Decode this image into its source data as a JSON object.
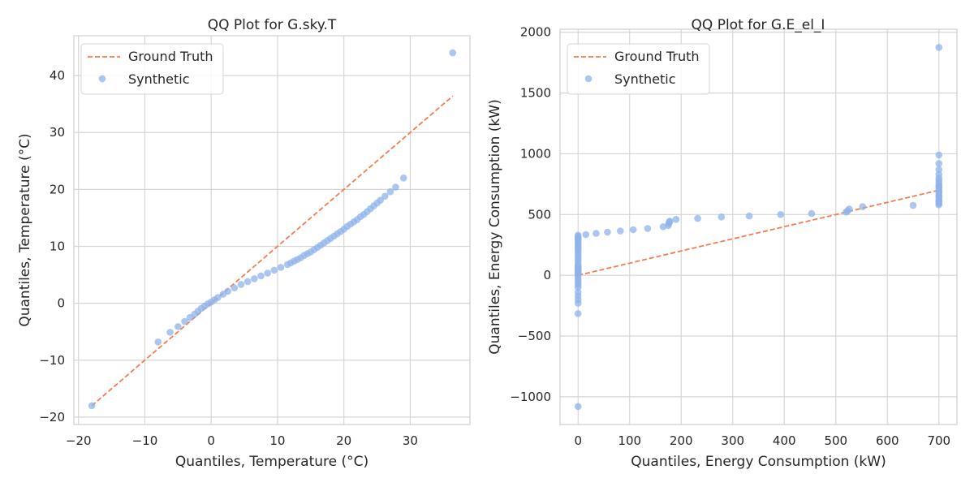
{
  "chart_data": [
    {
      "type": "scatter",
      "title": "QQ Plot for G.sky.T",
      "xlabel": "Quantiles, Temperature (°C)",
      "ylabel": "Quantiles, Temperature (°C)",
      "xlim": [
        -20.7,
        39.0
      ],
      "ylim": [
        -21.3,
        47.0
      ],
      "xticks": [
        -20,
        -10,
        0,
        10,
        20,
        30
      ],
      "yticks": [
        -20,
        -10,
        0,
        10,
        20,
        30,
        40
      ],
      "xtick_labels": [
        "−20",
        "−10",
        "0",
        "10",
        "20",
        "30"
      ],
      "ytick_labels": [
        "−20",
        "−10",
        "0",
        "10",
        "20",
        "30",
        "40"
      ],
      "grid": true,
      "legend": {
        "placement": "top-left",
        "entries": [
          "Ground Truth",
          "Synthetic"
        ]
      },
      "series": [
        {
          "name": "Ground Truth",
          "kind": "line",
          "style": "dashed",
          "color": "#f47c4f",
          "x": [
            -18.0,
            36.4
          ],
          "y": [
            -18.0,
            36.4
          ]
        },
        {
          "name": "Synthetic",
          "kind": "scatter",
          "color": "#8fb3ea",
          "x": [
            -18.0,
            -8.0,
            -6.2,
            -5.0,
            -4.0,
            -3.2,
            -2.5,
            -2.0,
            -1.5,
            -1.0,
            -0.5,
            0.0,
            0.5,
            1.0,
            1.8,
            2.5,
            3.5,
            4.5,
            5.5,
            6.5,
            7.5,
            8.5,
            9.5,
            10.5,
            11.5,
            12.0,
            12.5,
            13.0,
            13.5,
            14.0,
            14.5,
            15.0,
            15.5,
            16.0,
            16.5,
            17.0,
            17.5,
            18.0,
            18.5,
            19.0,
            19.5,
            20.0,
            20.5,
            21.0,
            21.5,
            22.0,
            22.5,
            23.0,
            23.5,
            24.0,
            24.5,
            25.0,
            25.5,
            26.2,
            27.0,
            27.8,
            29.0,
            36.4
          ],
          "y": [
            -18.0,
            -6.8,
            -5.1,
            -4.1,
            -3.2,
            -2.5,
            -1.9,
            -1.4,
            -0.9,
            -0.5,
            -0.1,
            0.2,
            0.6,
            1.0,
            1.6,
            2.1,
            2.7,
            3.3,
            3.8,
            4.3,
            4.8,
            5.3,
            5.8,
            6.3,
            6.8,
            7.1,
            7.4,
            7.7,
            8.0,
            8.4,
            8.7,
            9.0,
            9.4,
            9.8,
            10.2,
            10.6,
            11.0,
            11.4,
            11.8,
            12.2,
            12.6,
            13.0,
            13.5,
            13.9,
            14.3,
            14.7,
            15.2,
            15.6,
            16.1,
            16.6,
            17.1,
            17.6,
            18.1,
            18.8,
            19.6,
            20.4,
            22.0,
            44.0
          ]
        }
      ]
    },
    {
      "type": "scatter",
      "title": "QQ Plot for G.E_el_I",
      "xlabel": "Quantiles, Energy Consumption (kW)",
      "ylabel": "Quantiles, Energy Consumption (kW)",
      "xlim": [
        -35,
        735
      ],
      "ylim": [
        -1228,
        2025
      ],
      "xticks": [
        0,
        100,
        200,
        300,
        400,
        500,
        600,
        700
      ],
      "yticks": [
        -1000,
        -500,
        0,
        500,
        1000,
        1500,
        2000
      ],
      "xtick_labels": [
        "0",
        "100",
        "200",
        "300",
        "400",
        "500",
        "600",
        "700"
      ],
      "ytick_labels": [
        "−1000",
        "−500",
        "0",
        "500",
        "1000",
        "1500",
        "2000"
      ],
      "grid": true,
      "legend": {
        "placement": "top-left",
        "entries": [
          "Ground Truth",
          "Synthetic"
        ]
      },
      "series": [
        {
          "name": "Ground Truth",
          "kind": "line",
          "style": "dashed",
          "color": "#f47c4f",
          "x": [
            0,
            700
          ],
          "y": [
            0,
            700
          ]
        },
        {
          "name": "Synthetic",
          "kind": "scatter",
          "color": "#8fb3ea",
          "x": [
            0,
            0,
            0,
            0,
            0,
            0,
            0,
            0,
            0,
            0,
            0,
            0,
            0,
            0,
            0,
            0,
            0,
            0,
            0,
            0,
            0,
            0,
            0,
            0,
            0,
            0,
            0,
            0,
            0,
            0,
            0,
            0,
            0,
            0,
            0,
            0,
            0,
            0,
            0,
            0,
            15,
            35,
            57,
            82,
            107,
            135,
            165,
            175,
            176,
            177,
            178,
            190,
            232,
            278,
            332,
            393,
            453,
            520,
            523,
            526,
            552,
            650,
            700,
            700,
            700,
            700,
            700,
            700,
            700,
            700,
            700,
            700,
            700,
            700,
            700,
            700,
            700,
            700,
            700,
            700,
            700,
            700,
            700,
            700
          ],
          "y": [
            -1080,
            -315,
            -230,
            -200,
            -170,
            -140,
            -100,
            -80,
            -60,
            -40,
            -20,
            0,
            20,
            40,
            60,
            80,
            100,
            120,
            140,
            160,
            180,
            200,
            215,
            230,
            245,
            260,
            275,
            290,
            300,
            310,
            320,
            330,
            5,
            15,
            25,
            35,
            45,
            55,
            65,
            75,
            335,
            345,
            355,
            365,
            375,
            385,
            400,
            410,
            425,
            440,
            445,
            460,
            468,
            480,
            488,
            500,
            508,
            520,
            530,
            545,
            565,
            575,
            580,
            600,
            620,
            640,
            660,
            680,
            700,
            720,
            740,
            760,
            780,
            800,
            830,
            870,
            920,
            990,
            1875,
            590,
            610,
            650,
            690,
            730
          ]
        }
      ]
    }
  ]
}
